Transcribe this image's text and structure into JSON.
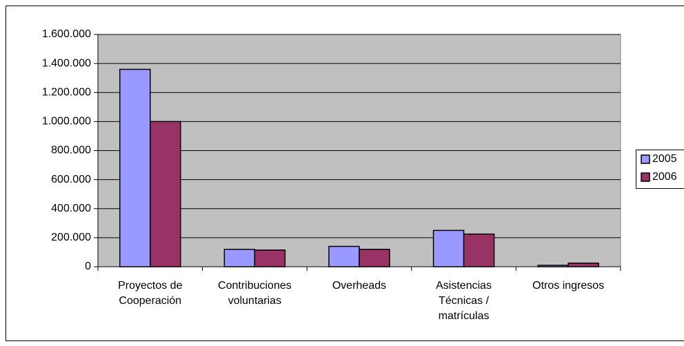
{
  "chart_data": {
    "type": "bar",
    "categories": [
      "Proyectos de\nCooperación",
      "Contribuciones\nvoluntarias",
      "Overheads",
      "Asistencias\nTécnicas /\nmatrículas",
      "Otros ingresos"
    ],
    "series": [
      {
        "name": "2005",
        "color": "#9999ff",
        "values": [
          1360000,
          120000,
          140000,
          250000,
          10000
        ]
      },
      {
        "name": "2006",
        "color": "#993366",
        "values": [
          1000000,
          115000,
          120000,
          225000,
          25000
        ]
      }
    ],
    "ylim": [
      0,
      1600000
    ],
    "yticks": [
      0,
      {
        "value": 200000,
        "label": "200.000"
      },
      {
        "value": 400000,
        "label": "400.000"
      },
      {
        "value": 600000,
        "label": "600.000"
      },
      {
        "value": 800000,
        "label": "800.000"
      },
      {
        "value": 1000000,
        "label": "1.000.000"
      },
      {
        "value": 1200000,
        "label": "1.200.000"
      },
      {
        "value": 1400000,
        "label": "1.400.000"
      },
      {
        "value": 1600000,
        "label": "1.600.000"
      }
    ],
    "grid": true,
    "legend": "right"
  }
}
